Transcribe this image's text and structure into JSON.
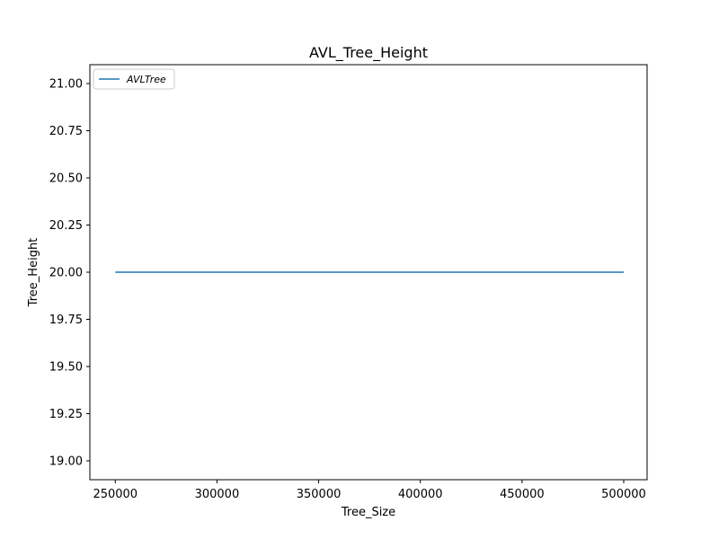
{
  "chart_data": {
    "type": "line",
    "title": "AVL_Tree_Height",
    "xlabel": "Tree_Size",
    "ylabel": "Tree_Height",
    "xlim": [
      237500,
      511500
    ],
    "ylim": [
      18.9,
      21.1
    ],
    "x_ticks": [
      250000,
      300000,
      350000,
      400000,
      450000,
      500000
    ],
    "x_tick_labels": [
      "250000",
      "300000",
      "350000",
      "400000",
      "450000",
      "500000"
    ],
    "y_ticks": [
      19.0,
      19.25,
      19.5,
      19.75,
      20.0,
      20.25,
      20.5,
      20.75,
      21.0
    ],
    "y_tick_labels": [
      "19.00",
      "19.25",
      "19.50",
      "19.75",
      "20.00",
      "20.25",
      "20.50",
      "20.75",
      "21.00"
    ],
    "grid": false,
    "legend_position": "top-left",
    "series": [
      {
        "name": "AVLTree",
        "color": "#1f77b4",
        "x": [
          250000,
          500000
        ],
        "y": [
          20,
          20
        ]
      }
    ]
  }
}
